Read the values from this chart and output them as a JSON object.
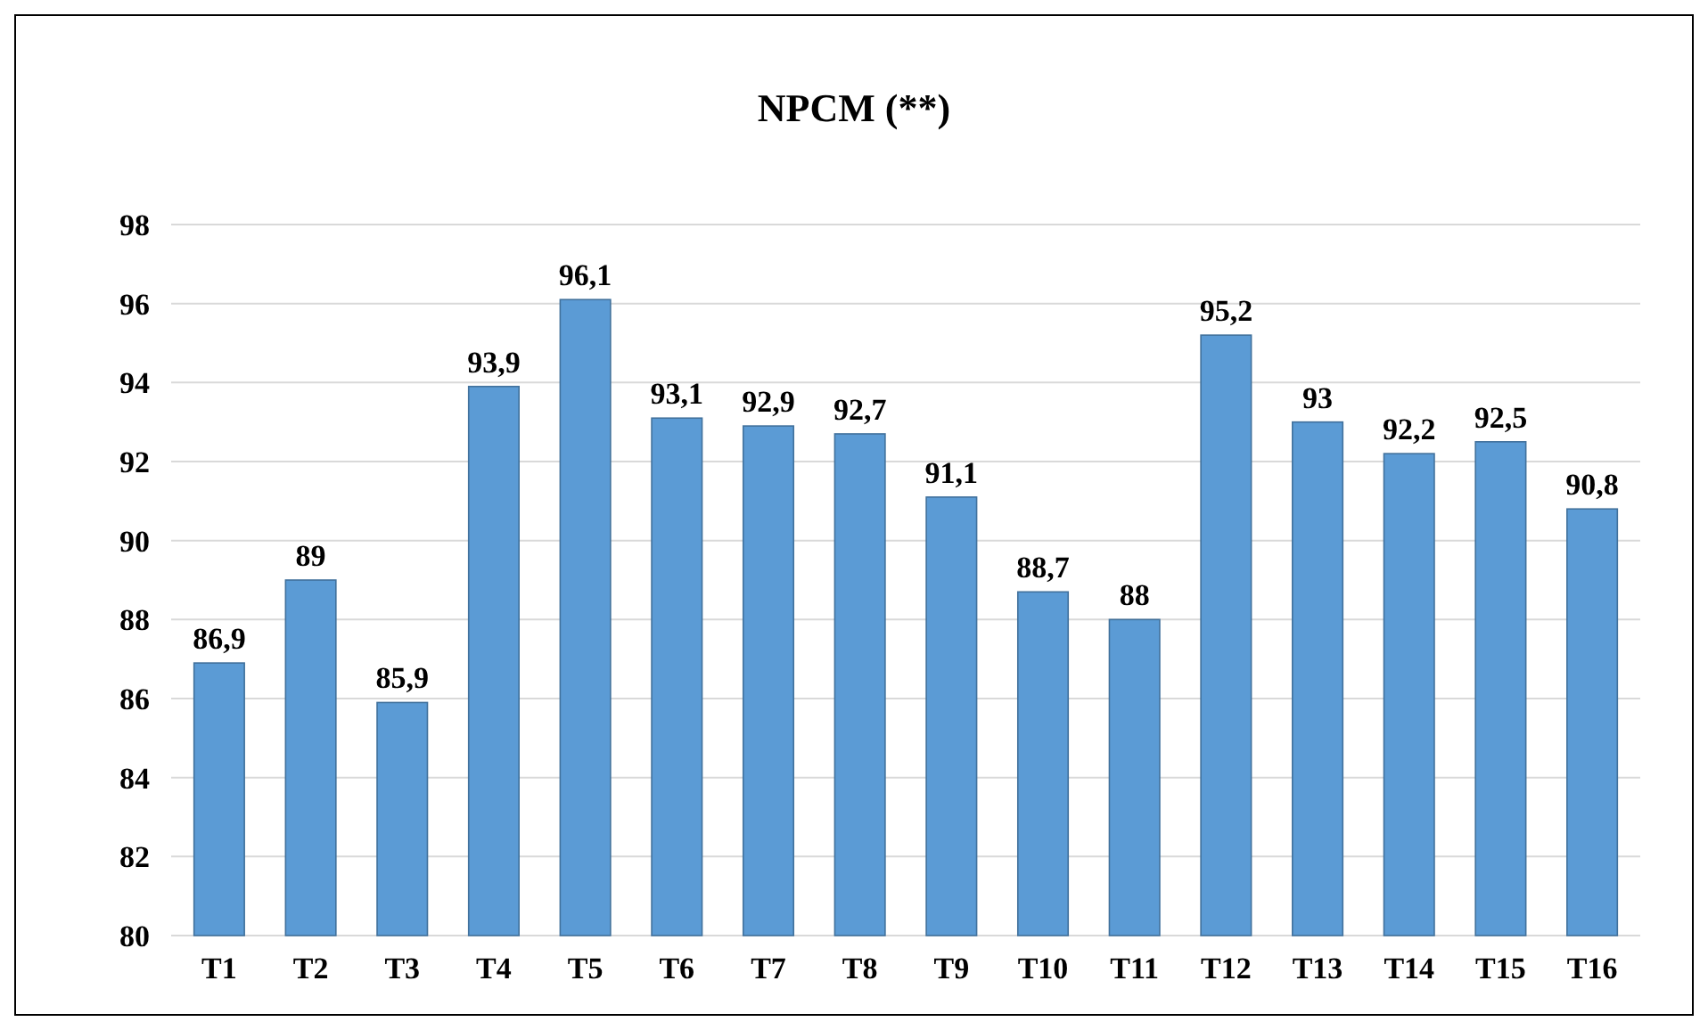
{
  "chart_data": {
    "type": "bar",
    "title": "NPCM (**)",
    "categories": [
      "T1",
      "T2",
      "T3",
      "T4",
      "T5",
      "T6",
      "T7",
      "T8",
      "T9",
      "T10",
      "T11",
      "T12",
      "T13",
      "T14",
      "T15",
      "T16"
    ],
    "values": [
      86.9,
      89,
      85.9,
      93.9,
      96.1,
      93.1,
      92.9,
      92.7,
      91.1,
      88.7,
      88,
      95.2,
      93,
      92.2,
      92.5,
      90.8
    ],
    "value_labels": [
      "86,9",
      "89",
      "85,9",
      "93,9",
      "96,1",
      "93,1",
      "92,9",
      "92,7",
      "91,1",
      "88,7",
      "88",
      "95,2",
      "93",
      "92,2",
      "92,5",
      "90,8"
    ],
    "color": "#5b9bd5",
    "ylim": [
      80,
      98
    ],
    "yticks": [
      80,
      82,
      84,
      86,
      88,
      90,
      92,
      94,
      96,
      98
    ],
    "grid": "y"
  }
}
